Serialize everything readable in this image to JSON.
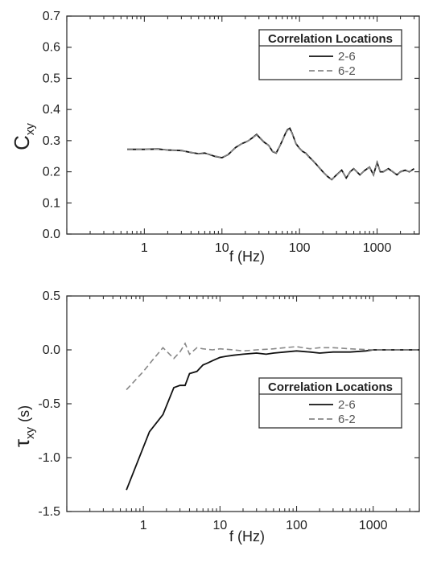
{
  "chart_data": [
    {
      "type": "line",
      "ylabel": "C",
      "ylabel_sub": "xy",
      "xlabel": "f (Hz)",
      "xscale": "log",
      "xlim": [
        0.1,
        3500
      ],
      "ylim": [
        0,
        0.7
      ],
      "xticks": [
        {
          "v": 1,
          "label": "1"
        },
        {
          "v": 10,
          "label": "10"
        },
        {
          "v": 100,
          "label": "100"
        },
        {
          "v": 1000,
          "label": "1000"
        }
      ],
      "yticks": [
        {
          "v": 0,
          "label": "0.0"
        },
        {
          "v": 0.1,
          "label": "0.1"
        },
        {
          "v": 0.2,
          "label": "0.2"
        },
        {
          "v": 0.3,
          "label": "0.3"
        },
        {
          "v": 0.4,
          "label": "0.4"
        },
        {
          "v": 0.5,
          "label": "0.5"
        },
        {
          "v": 0.6,
          "label": "0.6"
        },
        {
          "v": 0.7,
          "label": "0.7"
        }
      ],
      "legend": {
        "title": "Correlation Locations",
        "position": "top-right"
      },
      "series": [
        {
          "name": "2-6",
          "style": "solid",
          "color": "#111111",
          "x": [
            0.6,
            1,
            1.5,
            2,
            3,
            4,
            5,
            6,
            7,
            8,
            10,
            12,
            15,
            18,
            20,
            22,
            25,
            28,
            30,
            35,
            40,
            45,
            50,
            55,
            60,
            65,
            70,
            75,
            80,
            90,
            100,
            110,
            120,
            130,
            150,
            170,
            200,
            230,
            260,
            300,
            350,
            400,
            450,
            500,
            600,
            700,
            800,
            900,
            1000,
            1100,
            1200,
            1400,
            1600,
            1800,
            2000,
            2300,
            2600,
            3000
          ],
          "y": [
            0.272,
            0.272,
            0.273,
            0.27,
            0.268,
            0.262,
            0.258,
            0.26,
            0.255,
            0.25,
            0.245,
            0.255,
            0.278,
            0.29,
            0.295,
            0.3,
            0.31,
            0.32,
            0.312,
            0.295,
            0.285,
            0.265,
            0.26,
            0.28,
            0.3,
            0.32,
            0.335,
            0.34,
            0.325,
            0.29,
            0.275,
            0.265,
            0.26,
            0.25,
            0.235,
            0.22,
            0.2,
            0.185,
            0.175,
            0.19,
            0.205,
            0.18,
            0.2,
            0.21,
            0.19,
            0.205,
            0.215,
            0.19,
            0.23,
            0.2,
            0.2,
            0.21,
            0.2,
            0.19,
            0.2,
            0.205,
            0.2,
            0.21
          ]
        },
        {
          "name": "6-2",
          "style": "dashed",
          "color": "#888888",
          "x": [
            0.6,
            1,
            1.5,
            2,
            3,
            4,
            5,
            6,
            7,
            8,
            10,
            12,
            15,
            18,
            20,
            22,
            25,
            28,
            30,
            35,
            40,
            45,
            50,
            55,
            60,
            65,
            70,
            75,
            80,
            90,
            100,
            110,
            120,
            130,
            150,
            170,
            200,
            230,
            260,
            300,
            350,
            400,
            450,
            500,
            600,
            700,
            800,
            900,
            1000,
            1100,
            1200,
            1400,
            1600,
            1800,
            2000,
            2300,
            2600,
            3000
          ],
          "y": [
            0.271,
            0.272,
            0.272,
            0.27,
            0.267,
            0.263,
            0.257,
            0.259,
            0.256,
            0.251,
            0.246,
            0.256,
            0.277,
            0.29,
            0.296,
            0.3,
            0.31,
            0.318,
            0.313,
            0.296,
            0.284,
            0.266,
            0.261,
            0.281,
            0.301,
            0.318,
            0.333,
            0.338,
            0.323,
            0.291,
            0.274,
            0.266,
            0.259,
            0.249,
            0.236,
            0.221,
            0.201,
            0.184,
            0.176,
            0.189,
            0.204,
            0.181,
            0.199,
            0.209,
            0.191,
            0.204,
            0.214,
            0.191,
            0.228,
            0.201,
            0.199,
            0.209,
            0.201,
            0.191,
            0.199,
            0.204,
            0.201,
            0.209
          ]
        }
      ]
    },
    {
      "type": "line",
      "ylabel": "τ",
      "ylabel_sub": "xy",
      "ylabel_unit": "(s)",
      "xlabel": "f (Hz)",
      "xscale": "log",
      "xlim": [
        0.1,
        4000
      ],
      "ylim": [
        -1.5,
        0.5
      ],
      "xticks": [
        {
          "v": 1,
          "label": "1"
        },
        {
          "v": 10,
          "label": "10"
        },
        {
          "v": 100,
          "label": "100"
        },
        {
          "v": 1000,
          "label": "1000"
        }
      ],
      "yticks": [
        {
          "v": -1.5,
          "label": "-1.5"
        },
        {
          "v": -1.0,
          "label": "-1.0"
        },
        {
          "v": -0.5,
          "label": "-0.5"
        },
        {
          "v": 0.0,
          "label": "0.0"
        },
        {
          "v": 0.5,
          "label": "0.5"
        }
      ],
      "legend": {
        "title": "Correlation Locations",
        "position": "right"
      },
      "series": [
        {
          "name": "2-6",
          "style": "solid",
          "color": "#111111",
          "x": [
            0.6,
            1.2,
            1.8,
            2.5,
            3,
            3.5,
            4,
            5,
            6,
            7,
            8,
            10,
            12,
            15,
            20,
            30,
            40,
            50,
            70,
            100,
            150,
            200,
            300,
            500,
            800,
            1000,
            2000,
            4000
          ],
          "y": [
            -1.3,
            -0.76,
            -0.6,
            -0.35,
            -0.33,
            -0.33,
            -0.22,
            -0.2,
            -0.14,
            -0.12,
            -0.1,
            -0.07,
            -0.06,
            -0.05,
            -0.04,
            -0.03,
            -0.04,
            -0.03,
            -0.02,
            -0.01,
            -0.02,
            -0.03,
            -0.02,
            -0.02,
            -0.01,
            0.0,
            0.0,
            0.0
          ]
        },
        {
          "name": "6-2",
          "style": "dashed",
          "color": "#888888",
          "x": [
            0.6,
            1,
            1.3,
            1.8,
            2.5,
            3,
            3.5,
            4,
            5,
            6,
            8,
            10,
            15,
            20,
            30,
            50,
            70,
            100,
            150,
            200,
            300,
            500,
            1000,
            2000,
            4000
          ],
          "y": [
            -0.37,
            -0.2,
            -0.1,
            0.02,
            -0.08,
            -0.02,
            0.06,
            -0.04,
            0.02,
            0.01,
            0.0,
            0.01,
            0.0,
            -0.01,
            0.0,
            0.01,
            0.02,
            0.03,
            0.01,
            0.02,
            0.02,
            0.01,
            0.0,
            0.0,
            0.0
          ]
        }
      ]
    }
  ]
}
